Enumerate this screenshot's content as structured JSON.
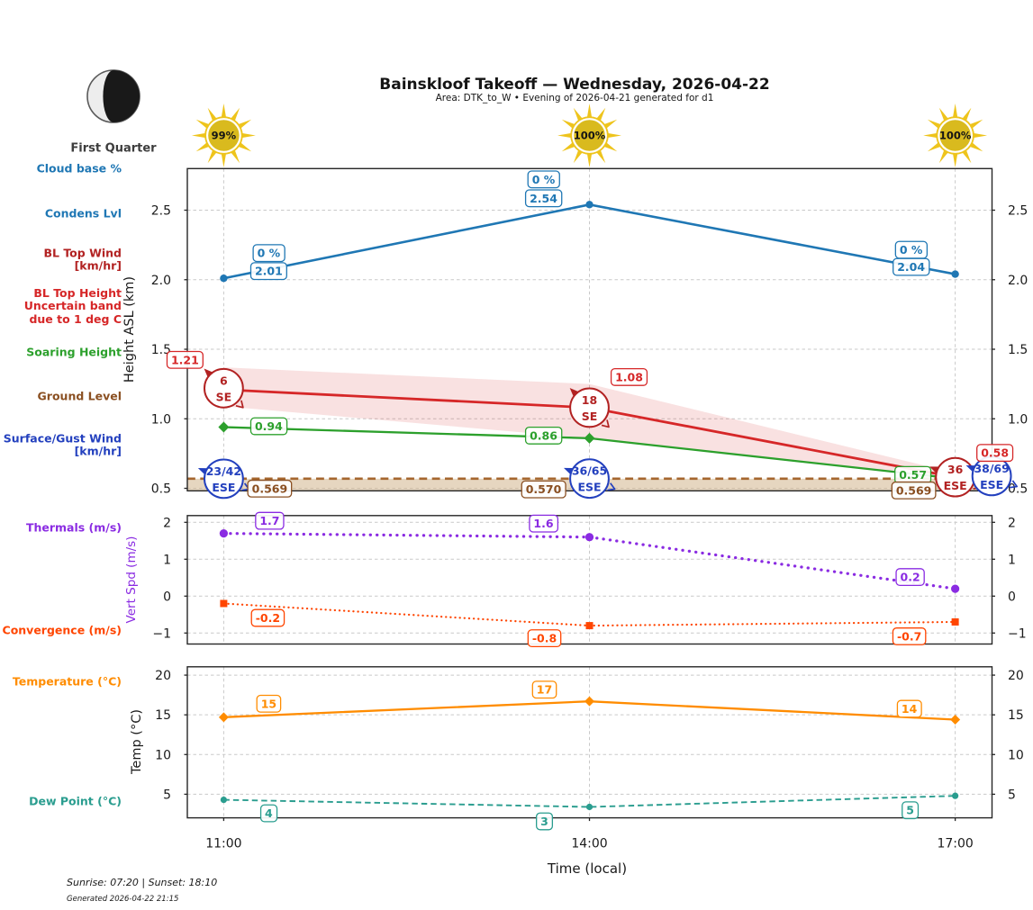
{
  "title": "Bainskloof Takeoff — Wednesday, 2026-04-22",
  "subtitle": "Area: DTK_to_W • Evening of 2026-04-21 generated for d1",
  "moon": {
    "phase_label": "First Quarter"
  },
  "footer": {
    "sun_times": "Sunrise: 07:20 | Sunset: 18:10",
    "generated": "Generated 2026-04-22 21:15"
  },
  "legend": {
    "cloud_base": {
      "lines": [
        "Cloud base %"
      ],
      "color": "#1f77b4"
    },
    "condens": {
      "lines": [
        "Condens Lvl"
      ],
      "color": "#1f77b4"
    },
    "bl_top_wind": {
      "lines": [
        "BL Top Wind",
        "[km/hr]"
      ],
      "color": "#b22222"
    },
    "bl_top_height": {
      "lines": [
        "BL Top Height",
        "Uncertain band",
        "due to 1 deg C"
      ],
      "color": "#d62728"
    },
    "soaring": {
      "lines": [
        "Soaring Height"
      ],
      "color": "#2ca02c"
    },
    "ground": {
      "lines": [
        "Ground Level"
      ],
      "color": "#8a4f21"
    },
    "surface_wind": {
      "lines": [
        "Surface/Gust Wind",
        "[km/hr]"
      ],
      "color": "#2340be"
    },
    "thermals": {
      "lines": [
        "Thermals (m/s)"
      ],
      "color": "#8a2be2"
    },
    "convergence": {
      "lines": [
        "Convergence (m/s)"
      ],
      "color": "#ff4500"
    },
    "temperature": {
      "lines": [
        "Temperature (°C)"
      ],
      "color": "#ff8c00"
    },
    "dew_point": {
      "lines": [
        "Dew Point (°C)"
      ],
      "color": "#2a9d8f"
    }
  },
  "suns": [
    {
      "time": "11:00",
      "label": "99%"
    },
    {
      "time": "14:00",
      "label": "100%"
    },
    {
      "time": "17:00",
      "label": "100%"
    }
  ],
  "chart_data": [
    {
      "type": "line",
      "ylabel": "Height ASL (km)",
      "ylim": [
        0.482,
        2.799
      ],
      "ytick_values": [
        0.5,
        1.0,
        1.5,
        2.0,
        2.5
      ],
      "ytick_labels": [
        "0.5",
        "1.0",
        "1.5",
        "2.0",
        "2.5"
      ],
      "x_hours": [
        11,
        14,
        17
      ],
      "grid": true,
      "series": [
        {
          "id": "condens",
          "name": "Condens Lvl",
          "color": "#1f77b4",
          "line": "solid",
          "width": 2.6,
          "marker": "circle",
          "marker_size": 4.2,
          "values": [
            2.01,
            2.54,
            2.04
          ],
          "value_labels": [
            "2.01",
            "2.54",
            "2.04"
          ],
          "cloud_base_labels": [
            "0 %",
            "0 %",
            "0 %"
          ],
          "label_dx": [
            50,
            -51,
            -49
          ],
          "label_dy": [
            -8,
            -7,
            -8
          ],
          "cloud_dy": [
            -28,
            -28,
            -27
          ]
        },
        {
          "id": "bl_top_height",
          "name": "BL Top Height",
          "color": "#d62728",
          "line": "solid",
          "width": 2.8,
          "marker": "none",
          "values": [
            1.21,
            1.08,
            0.58
          ],
          "value_labels": [
            "1.21",
            "1.08",
            "0.58"
          ],
          "label_dx": [
            -43,
            44,
            44
          ],
          "label_dy": [
            -33,
            -34,
            -27
          ],
          "band_upper": [
            1.37,
            1.25,
            0.61
          ],
          "band_lower": [
            1.09,
            0.86,
            0.566
          ],
          "band_alpha": 0.14
        },
        {
          "id": "soaring",
          "name": "Soaring Height",
          "color": "#2ca02c",
          "line": "solid",
          "width": 2.3,
          "marker": "diamond",
          "marker_size": 5,
          "values": [
            0.94,
            0.86,
            0.57
          ],
          "value_labels": [
            "0.94",
            "0.86",
            "0.57"
          ],
          "label_dx": [
            50,
            -51,
            -47
          ],
          "label_dy": [
            -1,
            -3,
            -4
          ]
        },
        {
          "id": "ground",
          "name": "Ground Level",
          "color": "#a5662e",
          "label_color": "#8a4f21",
          "line": "dashed",
          "width": 2.6,
          "marker": "none",
          "values": [
            0.569,
            0.57,
            0.569
          ],
          "value_labels": [
            "0.569",
            "0.570",
            "0.569"
          ],
          "label_dx": [
            51,
            -51,
            -46
          ],
          "label_dy": [
            11,
            12,
            13
          ],
          "fill_below": true,
          "fill_color": "#d2b48c",
          "fill_alpha": 0.55,
          "span_full_width": true
        }
      ],
      "wind_rows": [
        {
          "id": "bl_top_wind",
          "name": "BL Top Wind [km/hr]",
          "color": "#b22222",
          "anchor_series": "bl_top_height",
          "items": [
            {
              "speed": "6",
              "dir": "SE"
            },
            {
              "speed": "18",
              "dir": "SE"
            },
            {
              "speed": "36",
              "dir": "ESE"
            }
          ],
          "x_offset": [
            0,
            0,
            0
          ],
          "y_offset": [
            -1.5,
            0,
            0
          ]
        },
        {
          "id": "surface_wind",
          "name": "Surface/Gust Wind [km/hr]",
          "color": "#2340be",
          "anchor_series": "ground",
          "items": [
            {
              "speed": "23/42",
              "dir": "ESE"
            },
            {
              "speed": "36/65",
              "dir": "ESE"
            },
            {
              "speed": "38/69",
              "dir": "ESE"
            }
          ],
          "x_offset": [
            0,
            0,
            40.5
          ],
          "y_offset": [
            0,
            0,
            -3
          ]
        }
      ]
    },
    {
      "type": "line",
      "ylabel": "Vert Spd (m/s)",
      "ylim": [
        -1.298,
        2.183
      ],
      "ytick_values": [
        -1,
        0,
        1,
        2
      ],
      "ytick_labels": [
        "−1",
        "0",
        "1",
        "2"
      ],
      "x_hours": [
        11,
        14,
        17
      ],
      "grid": true,
      "series": [
        {
          "id": "thermals",
          "name": "Thermals (m/s)",
          "color": "#8a2be2",
          "line": "dotted",
          "width": 3.2,
          "marker": "circle",
          "marker_size": 4.6,
          "values": [
            1.7,
            1.6,
            0.2
          ],
          "value_labels": [
            "1.7",
            "1.6",
            "0.2"
          ],
          "label_dx": [
            51,
            -51,
            -50
          ],
          "label_dy": [
            -14,
            -15,
            -13
          ]
        },
        {
          "id": "convergence",
          "name": "Convergence (m/s)",
          "color": "#ff4500",
          "line": "dotted",
          "width": 2.2,
          "marker": "square",
          "marker_size": 4,
          "values": [
            -0.2,
            -0.8,
            -0.7
          ],
          "value_labels": [
            "-0.2",
            "-0.8",
            "-0.7"
          ],
          "label_dx": [
            49,
            -50,
            -51
          ],
          "label_dy": [
            16,
            14,
            16
          ]
        }
      ]
    },
    {
      "type": "line",
      "ylabel": "Temp (°C)",
      "xlabel": "Time (local)",
      "ylim": [
        2.03,
        21.05
      ],
      "ytick_values": [
        5,
        10,
        15,
        20
      ],
      "ytick_labels": [
        "5",
        "10",
        "15",
        "20"
      ],
      "x_hours": [
        11,
        14,
        17
      ],
      "x_tick_labels": [
        "11:00",
        "14:00",
        "17:00"
      ],
      "grid": true,
      "series": [
        {
          "id": "temperature",
          "name": "Temperature (°C)",
          "color": "#ff8c00",
          "line": "solid",
          "width": 2.3,
          "marker": "diamond",
          "marker_size": 4.5,
          "values": [
            14.7,
            16.7,
            14.4
          ],
          "value_labels": [
            "15",
            "17",
            "14"
          ],
          "label_dx": [
            50,
            -50,
            -51
          ],
          "label_dy": [
            -15,
            -13,
            -12
          ]
        },
        {
          "id": "dew_point",
          "name": "Dew Point (°C)",
          "color": "#2a9d8f",
          "line": "dashed",
          "width": 1.9,
          "marker": "circle",
          "marker_size": 3.6,
          "values": [
            4.3,
            3.4,
            4.8
          ],
          "value_labels": [
            "4",
            "3",
            "5"
          ],
          "label_dx": [
            50,
            -50,
            -50
          ],
          "label_dy": [
            15,
            16,
            16
          ]
        }
      ]
    }
  ]
}
